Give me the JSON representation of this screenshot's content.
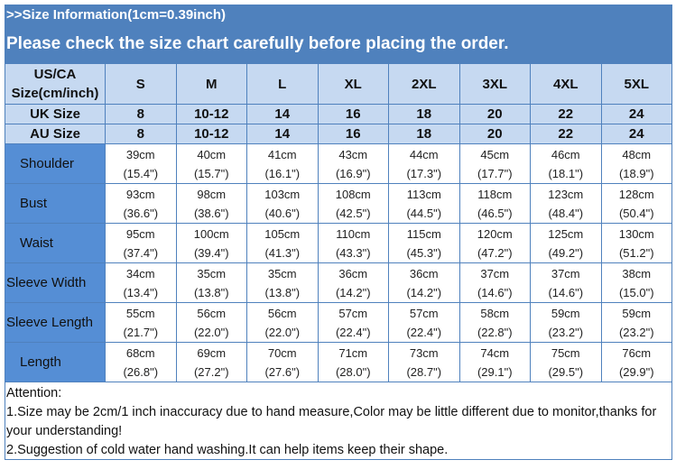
{
  "header": {
    "title": ">>Size Information(1cm=0.39inch)",
    "subtitle": "Please check the size chart carefully before placing the order."
  },
  "colors": {
    "banner": "#4f81bd",
    "header_cells": "#c6d9f1",
    "label_cells": "#558ed5"
  },
  "table": {
    "size_row_label": "US/CA Size(cm/inch)",
    "sizes": [
      "S",
      "M",
      "L",
      "XL",
      "2XL",
      "3XL",
      "4XL",
      "5XL"
    ],
    "uk": {
      "label": "UK Size",
      "values": [
        "8",
        "10-12",
        "14",
        "16",
        "18",
        "20",
        "22",
        "24"
      ]
    },
    "au": {
      "label": "AU Size",
      "values": [
        "8",
        "10-12",
        "14",
        "16",
        "18",
        "20",
        "22",
        "24"
      ]
    },
    "rows": [
      {
        "label": "Shoulder",
        "cm": [
          "39cm",
          "40cm",
          "41cm",
          "43cm",
          "44cm",
          "45cm",
          "46cm",
          "48cm"
        ],
        "inch": [
          "(15.4\")",
          "(15.7\")",
          "(16.1\")",
          "(16.9\")",
          "(17.3\")",
          "(17.7\")",
          "(18.1\")",
          "(18.9\")"
        ]
      },
      {
        "label": "Bust",
        "cm": [
          "93cm",
          "98cm",
          "103cm",
          "108cm",
          "113cm",
          "118cm",
          "123cm",
          "128cm"
        ],
        "inch": [
          "(36.6\")",
          "(38.6\")",
          "(40.6\")",
          "(42.5\")",
          "(44.5\")",
          "(46.5\")",
          "(48.4\")",
          "(50.4\")"
        ]
      },
      {
        "label": "Waist",
        "cm": [
          "95cm",
          "100cm",
          "105cm",
          "110cm",
          "115cm",
          "120cm",
          "125cm",
          "130cm"
        ],
        "inch": [
          "(37.4\")",
          "(39.4\")",
          "(41.3\")",
          "(43.3\")",
          "(45.3\")",
          "(47.2\")",
          "(49.2\")",
          "(51.2\")"
        ]
      },
      {
        "label": "Sleeve Width",
        "cm": [
          "34cm",
          "35cm",
          "35cm",
          "36cm",
          "36cm",
          "37cm",
          "37cm",
          "38cm"
        ],
        "inch": [
          "(13.4\")",
          "(13.8\")",
          "(13.8\")",
          "(14.2\")",
          "(14.2\")",
          "(14.6\")",
          "(14.6\")",
          "(15.0\")"
        ]
      },
      {
        "label": "Sleeve Length",
        "cm": [
          "55cm",
          "56cm",
          "56cm",
          "57cm",
          "57cm",
          "58cm",
          "59cm",
          "59cm"
        ],
        "inch": [
          "(21.7\")",
          "(22.0\")",
          "(22.0\")",
          "(22.4\")",
          "(22.4\")",
          "(22.8\")",
          "(23.2\")",
          "(23.2\")"
        ]
      },
      {
        "label": "Length",
        "cm": [
          "68cm",
          "69cm",
          "70cm",
          "71cm",
          "73cm",
          "74cm",
          "75cm",
          "76cm"
        ],
        "inch": [
          "(26.8\")",
          "(27.2\")",
          "(27.6\")",
          "(28.0\")",
          "(28.7\")",
          "(29.1\")",
          "(29.5\")",
          "(29.9\")"
        ]
      }
    ]
  },
  "attention": {
    "title": "Attention:",
    "line1": "1.Size may be 2cm/1 inch inaccuracy due to hand measure,Color may be little different due to monitor,thanks for your understanding!",
    "line2": "2.Suggestion of cold water hand washing.It can help items keep their shape."
  }
}
